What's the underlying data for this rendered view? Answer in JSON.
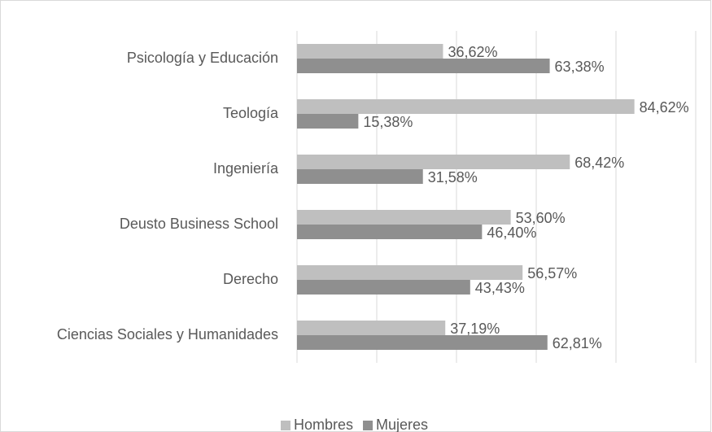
{
  "chart_data": {
    "type": "hbar",
    "categories": [
      "Psicología y Educación",
      "Teología",
      "Ingeniería",
      "Deusto Business School",
      "Derecho",
      "Ciencias Sociales y Humanidades"
    ],
    "series": [
      {
        "name": "Hombres",
        "color": "#bfbfbf",
        "values": [
          36.62,
          84.62,
          68.42,
          53.6,
          56.57,
          37.19
        ],
        "value_labels": [
          "36,62%",
          "84,62%",
          "68,42%",
          "53,60%",
          "56,57%",
          "37,19%"
        ]
      },
      {
        "name": "Mujeres",
        "color": "#8f8f8f",
        "values": [
          63.38,
          15.38,
          31.58,
          46.4,
          43.43,
          62.81
        ],
        "value_labels": [
          "63,38%",
          "15,38%",
          "31,58%",
          "46,40%",
          "43,43%",
          "62,81%"
        ]
      }
    ],
    "xlim": [
      0,
      100
    ],
    "xticks": [
      0,
      20,
      40,
      60,
      80,
      100
    ],
    "grid": true,
    "legend": "bottom"
  }
}
